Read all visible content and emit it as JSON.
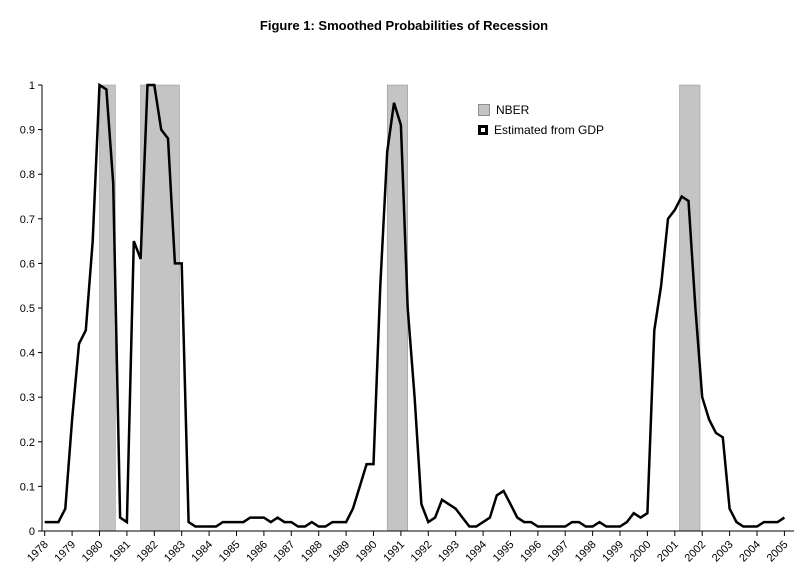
{
  "page": {
    "title": "Figure 1: Smoothed Probabilities of Recession"
  },
  "legend": {
    "items": [
      {
        "label": "NBER",
        "swatch": "gray-box"
      },
      {
        "label": "Estimated from GDP",
        "swatch": "black-square-marker"
      }
    ]
  },
  "chart_data": {
    "type": "line",
    "title": "Figure 1: Smoothed Probabilities of Recession",
    "xlabel": "",
    "ylabel": "",
    "xlim": [
      1977.9,
      2005.35
    ],
    "ylim": [
      0,
      1
    ],
    "grid": false,
    "legend_position": "top-center-right",
    "x_ticks": [
      1978,
      1979,
      1980,
      1981,
      1982,
      1983,
      1984,
      1985,
      1986,
      1987,
      1988,
      1989,
      1990,
      1991,
      1992,
      1993,
      1994,
      1995,
      1996,
      1997,
      1998,
      1999,
      2000,
      2001,
      2002,
      2003,
      2004,
      2005
    ],
    "x_tick_labels": [
      "1978",
      "1979",
      "1980",
      "1981",
      "1982",
      "1983",
      "1984",
      "1985",
      "1986",
      "1987",
      "1988",
      "1989",
      "1990",
      "1991",
      "1992",
      "1993",
      "1994",
      "1995",
      "1996",
      "1997",
      "1998",
      "1999",
      "2000",
      "2001",
      "2002",
      "2003",
      "2004",
      "2005"
    ],
    "y_ticks": [
      0,
      0.1,
      0.2,
      0.3,
      0.4,
      0.5,
      0.6,
      0.7,
      0.8,
      0.9,
      1
    ],
    "y_tick_labels": [
      "0",
      "0.1",
      "0.2",
      "0.3",
      "0.4",
      "0.5",
      "0.6",
      "0.7",
      "0.8",
      "0.9",
      "1"
    ],
    "bands": {
      "name": "NBER",
      "ranges": [
        [
          1980.0,
          1980.58
        ],
        [
          1981.5,
          1982.92
        ],
        [
          1990.5,
          1991.25
        ],
        [
          2001.17,
          2001.92
        ]
      ]
    },
    "series": [
      {
        "name": "Estimated from GDP",
        "x_start": 1978.0,
        "x_step": 0.25,
        "values": [
          0.02,
          0.02,
          0.02,
          0.05,
          0.25,
          0.42,
          0.45,
          0.65,
          1.0,
          0.99,
          0.78,
          0.03,
          0.02,
          0.65,
          0.61,
          1.0,
          1.0,
          0.9,
          0.88,
          0.6,
          0.6,
          0.02,
          0.01,
          0.01,
          0.01,
          0.01,
          0.02,
          0.02,
          0.02,
          0.02,
          0.03,
          0.03,
          0.03,
          0.02,
          0.03,
          0.02,
          0.02,
          0.01,
          0.01,
          0.02,
          0.01,
          0.01,
          0.02,
          0.02,
          0.02,
          0.05,
          0.1,
          0.15,
          0.15,
          0.55,
          0.85,
          0.96,
          0.91,
          0.5,
          0.3,
          0.06,
          0.02,
          0.03,
          0.07,
          0.06,
          0.05,
          0.03,
          0.01,
          0.01,
          0.02,
          0.03,
          0.08,
          0.09,
          0.06,
          0.03,
          0.02,
          0.02,
          0.01,
          0.01,
          0.01,
          0.01,
          0.01,
          0.02,
          0.02,
          0.01,
          0.01,
          0.02,
          0.01,
          0.01,
          0.01,
          0.02,
          0.04,
          0.03,
          0.04,
          0.45,
          0.55,
          0.7,
          0.72,
          0.75,
          0.74,
          0.5,
          0.3,
          0.25,
          0.22,
          0.21,
          0.05,
          0.02,
          0.01,
          0.01,
          0.01,
          0.02,
          0.02,
          0.02,
          0.03
        ]
      }
    ],
    "colors": {
      "line": "#000000",
      "band": "#c4c4c4",
      "band_border": "#8f8f8f",
      "axis": "#000000"
    }
  }
}
